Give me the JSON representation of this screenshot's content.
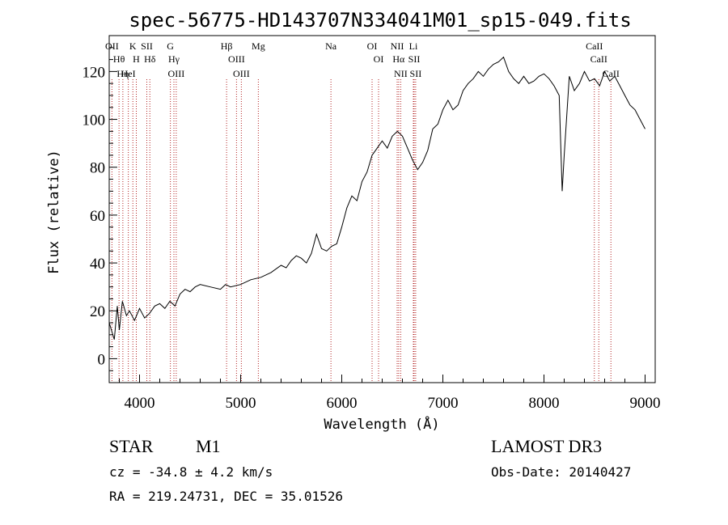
{
  "chart_data": {
    "type": "line",
    "title": "spec-56775-HD143707N334041M01_sp15-049.fits",
    "xlabel": "Wavelength (Å)",
    "ylabel": "Flux (relative)",
    "xlim": [
      3700,
      9100
    ],
    "ylim": [
      -10,
      135
    ],
    "xticks": [
      4000,
      5000,
      6000,
      7000,
      8000,
      9000
    ],
    "yticks": [
      0,
      20,
      40,
      60,
      80,
      100,
      120
    ],
    "grid": false,
    "series": [
      {
        "x": [
          3700,
          3750,
          3780,
          3800,
          3830,
          3870,
          3900,
          3950,
          4000,
          4050,
          4100,
          4150,
          4200,
          4250,
          4300,
          4350,
          4400,
          4450,
          4500,
          4550,
          4600,
          4700,
          4800,
          4850,
          4900,
          5000,
          5100,
          5200,
          5300,
          5400,
          5450,
          5500,
          5550,
          5600,
          5650,
          5700,
          5750,
          5800,
          5850,
          5900,
          5950,
          6000,
          6050,
          6100,
          6150,
          6200,
          6250,
          6300,
          6350,
          6400,
          6450,
          6500,
          6550,
          6600,
          6650,
          6700,
          6750,
          6800,
          6850,
          6900,
          6950,
          7000,
          7050,
          7100,
          7150,
          7200,
          7250,
          7300,
          7350,
          7400,
          7450,
          7500,
          7550,
          7600,
          7650,
          7700,
          7750,
          7800,
          7850,
          7900,
          7950,
          8000,
          8050,
          8100,
          8150,
          8180,
          8200,
          8250,
          8300,
          8350,
          8400,
          8450,
          8500,
          8550,
          8600,
          8650,
          8700,
          8750,
          8800,
          8850,
          8900,
          8950,
          9000
        ],
        "y": [
          15,
          8,
          22,
          12,
          24,
          18,
          20,
          16,
          21,
          17,
          19,
          22,
          23,
          21,
          24,
          22,
          27,
          29,
          28,
          30,
          31,
          30,
          29,
          31,
          30,
          31,
          33,
          34,
          36,
          39,
          38,
          41,
          43,
          42,
          40,
          44,
          52,
          46,
          45,
          47,
          48,
          55,
          63,
          68,
          66,
          74,
          78,
          85,
          88,
          91,
          88,
          93,
          95,
          93,
          88,
          83,
          79,
          82,
          87,
          96,
          98,
          104,
          108,
          104,
          106,
          112,
          115,
          117,
          120,
          118,
          121,
          123,
          124,
          126,
          120,
          117,
          115,
          118,
          115,
          116,
          118,
          119,
          117,
          114,
          110,
          70,
          85,
          118,
          112,
          115,
          120,
          116,
          117,
          114,
          120,
          116,
          118,
          114,
          110,
          106,
          104,
          100,
          96
        ]
      }
    ],
    "spectral_lines": [
      {
        "label": "Hθ",
        "wavelength": 3797
      },
      {
        "label": "OII",
        "wavelength": 3727
      },
      {
        "label": "Hη",
        "wavelength": 3835
      },
      {
        "label": "K",
        "wavelength": 3934
      },
      {
        "label": "H",
        "wavelength": 3968
      },
      {
        "label": "HeI",
        "wavelength": 3889
      },
      {
        "label": "SII",
        "wavelength": 4072
      },
      {
        "label": "Hδ",
        "wavelength": 4102
      },
      {
        "label": "OIII",
        "wavelength": 4363
      },
      {
        "label": "Hγ",
        "wavelength": 4340
      },
      {
        "label": "G",
        "wavelength": 4305
      },
      {
        "label": "Hβ",
        "wavelength": 4861
      },
      {
        "label": "OIII",
        "wavelength": 4959
      },
      {
        "label": "OIII",
        "wavelength": 5007
      },
      {
        "label": "Mg",
        "wavelength": 5175
      },
      {
        "label": "Na",
        "wavelength": 5893
      },
      {
        "label": "OI",
        "wavelength": 6300
      },
      {
        "label": "OI",
        "wavelength": 6364
      },
      {
        "label": "Hα",
        "wavelength": 6563
      },
      {
        "label": "NII",
        "wavelength": 6548
      },
      {
        "label": "NII",
        "wavelength": 6583
      },
      {
        "label": "SII",
        "wavelength": 6716
      },
      {
        "label": "Li",
        "wavelength": 6708
      },
      {
        "label": "SII",
        "wavelength": 6731
      },
      {
        "label": "CaII",
        "wavelength": 8498
      },
      {
        "label": "CaII",
        "wavelength": 8542
      },
      {
        "label": "CaII",
        "wavelength": 8662
      }
    ]
  },
  "info": {
    "class": "STAR",
    "subclass": "M1",
    "survey": "LAMOST DR3",
    "cz": "cz = -34.8 ± 4.2 km/s",
    "obs_date": "Obs-Date: 20140427",
    "coords": "RA = 219.24731, DEC =  35.01526"
  }
}
